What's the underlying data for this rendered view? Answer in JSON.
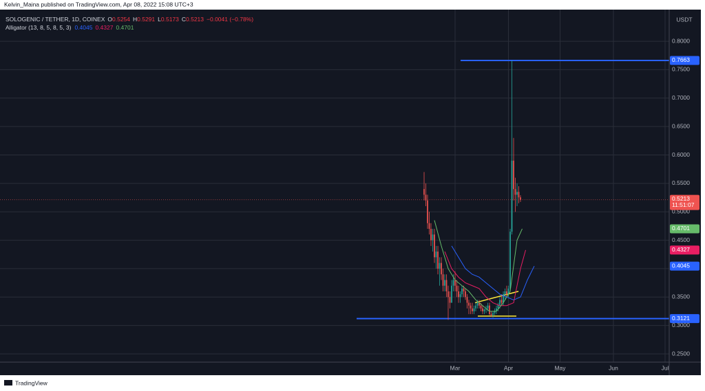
{
  "header": {
    "publisher": "Kelvin_Maina published on TradingView.com, Apr 08, 2022 15:08 UTC+3"
  },
  "footer": {
    "brand": "TradingView"
  },
  "chart_data": {
    "type": "candlestick",
    "title": "SOLOGENIC / TETHER, 1D, COINEX",
    "ohlc_labels": [
      "O",
      "H",
      "L",
      "C"
    ],
    "change_label": "−0.0041 (−0.78%)",
    "indicator": "Alligator (13, 8, 5, 8, 5, 3)",
    "y_unit": "USDT",
    "countdown": "11:51:07",
    "up_color": "#26a69a",
    "down_color": "#ef5350",
    "grid": true,
    "xlim": [
      -204.4,
      184.4
    ],
    "ylim": [
      0.2355,
      0.8557
    ],
    "xticks": [
      {
        "value": 60,
        "label": "Mar"
      },
      {
        "value": 91,
        "label": "Apr"
      },
      {
        "value": 121,
        "label": "May"
      },
      {
        "value": 152,
        "label": "Jun"
      },
      {
        "value": 182,
        "label": "Jul"
      }
    ],
    "yticks": [
      {
        "value": 0.25,
        "label": "0.2500"
      },
      {
        "value": 0.3,
        "label": "0.3000"
      },
      {
        "value": 0.35,
        "label": "0.3500"
      },
      {
        "value": 0.4,
        "label": "0.4000"
      },
      {
        "value": 0.45,
        "label": "0.4500"
      },
      {
        "value": 0.5,
        "label": "0.5000"
      },
      {
        "value": 0.55,
        "label": "0.5500"
      },
      {
        "value": 0.6,
        "label": "0.6000"
      },
      {
        "value": 0.65,
        "label": "0.6500"
      },
      {
        "value": 0.7,
        "label": "0.7000"
      },
      {
        "value": 0.75,
        "label": "0.7500"
      },
      {
        "value": 0.8,
        "label": "0.8000"
      }
    ],
    "x": [
      42,
      43,
      44,
      45,
      46,
      47,
      48,
      49,
      50,
      51,
      52,
      53,
      54,
      55,
      56,
      57,
      58,
      59,
      60,
      61,
      62,
      63,
      64,
      65,
      66,
      67,
      68,
      69,
      70,
      71,
      72,
      73,
      74,
      75,
      76,
      77,
      78,
      79,
      80,
      81,
      82,
      83,
      84,
      85,
      86,
      87,
      88,
      89,
      90,
      91,
      92,
      93,
      94,
      95,
      96,
      97,
      98
    ],
    "open": [
      0.54,
      0.53,
      0.52,
      0.48,
      0.47,
      0.45,
      0.46,
      0.42,
      0.43,
      0.4,
      0.41,
      0.39,
      0.37,
      0.38,
      0.36,
      0.35,
      0.34,
      0.37,
      0.38,
      0.37,
      0.36,
      0.35,
      0.355,
      0.365,
      0.36,
      0.35,
      0.34,
      0.335,
      0.33,
      0.325,
      0.33,
      0.335,
      0.34,
      0.335,
      0.33,
      0.325,
      0.328,
      0.33,
      0.335,
      0.32,
      0.318,
      0.322,
      0.326,
      0.33,
      0.336,
      0.345,
      0.34,
      0.355,
      0.36,
      0.355,
      0.365,
      0.465,
      0.59,
      0.54,
      0.53,
      0.535,
      0.5254
    ],
    "high": [
      0.57,
      0.55,
      0.53,
      0.5,
      0.48,
      0.47,
      0.47,
      0.44,
      0.44,
      0.42,
      0.42,
      0.4,
      0.39,
      0.39,
      0.37,
      0.36,
      0.38,
      0.39,
      0.395,
      0.38,
      0.37,
      0.36,
      0.37,
      0.37,
      0.365,
      0.355,
      0.345,
      0.34,
      0.34,
      0.335,
      0.34,
      0.345,
      0.345,
      0.34,
      0.335,
      0.33,
      0.335,
      0.34,
      0.34,
      0.325,
      0.325,
      0.33,
      0.335,
      0.34,
      0.35,
      0.355,
      0.36,
      0.365,
      0.37,
      0.37,
      0.47,
      0.7663,
      0.63,
      0.56,
      0.55,
      0.545,
      0.5291
    ],
    "low": [
      0.52,
      0.51,
      0.47,
      0.46,
      0.44,
      0.43,
      0.41,
      0.4,
      0.39,
      0.37,
      0.38,
      0.36,
      0.36,
      0.35,
      0.31,
      0.33,
      0.34,
      0.36,
      0.36,
      0.35,
      0.34,
      0.34,
      0.35,
      0.35,
      0.345,
      0.33,
      0.32,
      0.32,
      0.32,
      0.32,
      0.325,
      0.33,
      0.33,
      0.325,
      0.32,
      0.32,
      0.322,
      0.325,
      0.318,
      0.315,
      0.314,
      0.318,
      0.32,
      0.325,
      0.33,
      0.335,
      0.335,
      0.345,
      0.35,
      0.35,
      0.36,
      0.46,
      0.52,
      0.5,
      0.51,
      0.515,
      0.5173
    ],
    "close": [
      0.53,
      0.52,
      0.48,
      0.47,
      0.45,
      0.46,
      0.42,
      0.43,
      0.4,
      0.41,
      0.39,
      0.37,
      0.38,
      0.36,
      0.35,
      0.34,
      0.37,
      0.38,
      0.37,
      0.36,
      0.35,
      0.355,
      0.365,
      0.36,
      0.35,
      0.34,
      0.335,
      0.33,
      0.325,
      0.33,
      0.335,
      0.34,
      0.335,
      0.33,
      0.325,
      0.328,
      0.33,
      0.335,
      0.32,
      0.318,
      0.322,
      0.326,
      0.33,
      0.336,
      0.345,
      0.34,
      0.355,
      0.36,
      0.355,
      0.365,
      0.465,
      0.59,
      0.54,
      0.53,
      0.535,
      0.5254,
      0.5213
    ],
    "series": [
      {
        "name": "Jaw",
        "color": "#2962ff",
        "x": [
          58,
          62,
          66,
          70,
          74,
          78,
          82,
          86,
          90,
          94,
          98,
          102,
          106
        ],
        "values": [
          0.44,
          0.42,
          0.4,
          0.39,
          0.385,
          0.375,
          0.365,
          0.355,
          0.35,
          0.345,
          0.35,
          0.38,
          0.4045
        ]
      },
      {
        "name": "Teeth",
        "color": "#e91e63",
        "x": [
          54,
          58,
          62,
          66,
          70,
          74,
          78,
          82,
          86,
          90,
          94,
          98,
          101
        ],
        "values": [
          0.43,
          0.4,
          0.385,
          0.375,
          0.37,
          0.365,
          0.35,
          0.34,
          0.335,
          0.335,
          0.34,
          0.4,
          0.4327
        ]
      },
      {
        "name": "Lips",
        "color": "#66bb6a",
        "x": [
          48,
          52,
          56,
          60,
          64,
          68,
          72,
          76,
          80,
          84,
          88,
          92,
          96,
          99
        ],
        "values": [
          0.485,
          0.44,
          0.4,
          0.38,
          0.37,
          0.36,
          0.345,
          0.335,
          0.325,
          0.325,
          0.34,
          0.36,
          0.45,
          0.4701
        ]
      }
    ],
    "hlines": [
      {
        "value": 0.7663,
        "x_start": 63.2,
        "color": "#2962ff"
      },
      {
        "value": 0.3121,
        "x_start": 2.8,
        "color": "#2962ff"
      }
    ],
    "trendlines": [
      {
        "x": [
          71.6,
          96.8
        ],
        "values": [
          0.34,
          0.36
        ],
        "color": "#ffeb3b"
      },
      {
        "x": [
          73.2,
          95.6
        ],
        "values": [
          0.3165,
          0.3165
        ],
        "color": "#ffeb3b"
      }
    ]
  }
}
